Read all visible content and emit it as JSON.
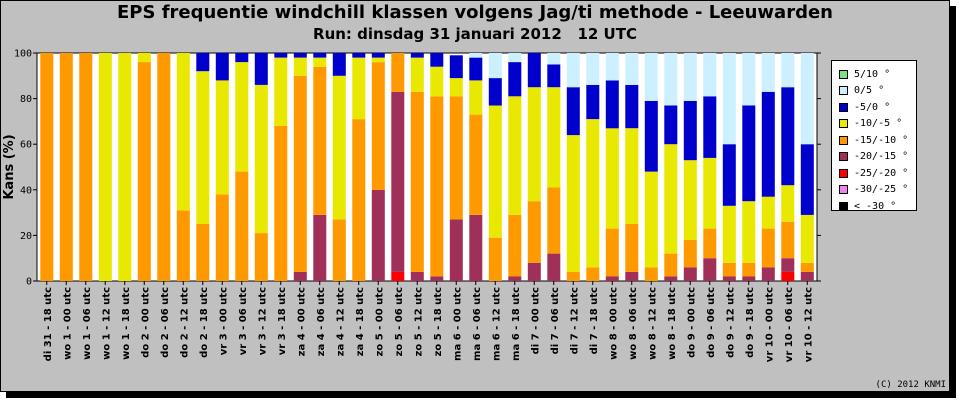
{
  "title": "EPS frequentie windchill klassen volgens Jag/ti methode - Leeuwarden",
  "subtitle": "Run: dinsdag 31 januari 2012   12 UTC",
  "credit": "(C) 2012 KNMI",
  "chart_data": {
    "type": "bar",
    "stacked": true,
    "ylabel": "Kans (%)",
    "ylim": [
      0,
      100
    ],
    "yticks": [
      0,
      20,
      40,
      60,
      80,
      100
    ],
    "grid": false,
    "legend_position": "right",
    "categories": [
      "di 31 - 18 utc",
      "wo 1 - 00 utc",
      "wo 1 - 06 utc",
      "wo 1 - 12 utc",
      "wo 1 - 18 utc",
      "do 2 - 00 utc",
      "do 2 - 06 utc",
      "do 2 - 12 utc",
      "do 2 - 18 utc",
      "vr 3 - 00 utc",
      "vr 3 - 06 utc",
      "vr 3 - 12 utc",
      "vr 3 - 18 utc",
      "za 4 - 00 utc",
      "za 4 - 06 utc",
      "za 4 - 12 utc",
      "za 4 - 18 utc",
      "zo 5 - 00 utc",
      "zo 5 - 06 utc",
      "zo 5 - 12 utc",
      "zo 5 - 18 utc",
      "ma 6 - 00 utc",
      "ma 6 - 06 utc",
      "ma 6 - 12 utc",
      "ma 6 - 18 utc",
      "di 7 - 00 utc",
      "di 7 - 06 utc",
      "di 7 - 12 utc",
      "di 7 - 18 utc",
      "wo 8 - 00 utc",
      "wo 8 - 06 utc",
      "wo 8 - 12 utc",
      "wo 8 - 18 utc",
      "do 9 - 00 utc",
      "do 9 - 06 utc",
      "do 9 - 12 utc",
      "do 9 - 18 utc",
      "vr 10 - 00 utc",
      "vr 10 - 06 utc",
      "vr 10 - 12 utc"
    ],
    "series": [
      {
        "name": "< -30 °",
        "color": "#000000",
        "values": [
          0,
          0,
          0,
          0,
          0,
          0,
          0,
          0,
          0,
          0,
          0,
          0,
          0,
          0,
          0,
          0,
          0,
          0,
          0,
          0,
          0,
          0,
          0,
          0,
          0,
          0,
          0,
          0,
          0,
          0,
          0,
          0,
          0,
          0,
          0,
          0,
          0,
          0,
          0,
          0
        ]
      },
      {
        "name": "-30/-25 °",
        "color": "#ee82ee",
        "values": [
          0,
          0,
          0,
          0,
          0,
          0,
          0,
          0,
          0,
          0,
          0,
          0,
          0,
          0,
          0,
          0,
          0,
          0,
          0,
          0,
          0,
          0,
          0,
          0,
          0,
          0,
          0,
          0,
          0,
          0,
          0,
          0,
          0,
          0,
          0,
          0,
          0,
          0,
          0,
          0
        ]
      },
      {
        "name": "-25/-20 °",
        "color": "#ff0000",
        "values": [
          0,
          0,
          0,
          0,
          0,
          0,
          0,
          0,
          0,
          0,
          0,
          0,
          0,
          0,
          0,
          0,
          0,
          0,
          4,
          0,
          0,
          0,
          0,
          0,
          0,
          0,
          0,
          0,
          0,
          0,
          0,
          0,
          0,
          0,
          0,
          0,
          0,
          0,
          4,
          0
        ]
      },
      {
        "name": "-20/-15 °",
        "color": "#a0305a",
        "values": [
          0,
          0,
          0,
          0,
          0,
          0,
          0,
          0,
          0,
          0,
          0,
          0,
          0,
          4,
          29,
          0,
          0,
          40,
          79,
          4,
          2,
          27,
          29,
          0,
          2,
          8,
          12,
          0,
          0,
          2,
          4,
          0,
          2,
          6,
          10,
          2,
          2,
          6,
          6,
          4
        ]
      },
      {
        "name": "-15/-10 °",
        "color": "#ff9900",
        "values": [
          100,
          100,
          100,
          0,
          0,
          96,
          100,
          31,
          25,
          38,
          48,
          21,
          68,
          86,
          65,
          27,
          71,
          56,
          17,
          79,
          79,
          54,
          44,
          19,
          27,
          27,
          29,
          4,
          6,
          21,
          21,
          6,
          10,
          12,
          13,
          6,
          6,
          17,
          16,
          4
        ]
      },
      {
        "name": "-10/-5 °",
        "color": "#e8e800",
        "values": [
          0,
          0,
          0,
          100,
          100,
          4,
          0,
          69,
          67,
          50,
          48,
          65,
          30,
          8,
          4,
          63,
          27,
          2,
          0,
          15,
          13,
          8,
          15,
          58,
          52,
          50,
          44,
          60,
          65,
          44,
          42,
          42,
          48,
          35,
          31,
          25,
          27,
          14,
          16,
          21
        ]
      },
      {
        "name": "-5/0 °",
        "color": "#0000cc",
        "values": [
          0,
          0,
          0,
          0,
          0,
          0,
          0,
          0,
          8,
          12,
          4,
          14,
          2,
          2,
          2,
          10,
          2,
          2,
          0,
          2,
          6,
          10,
          10,
          12,
          15,
          15,
          10,
          21,
          15,
          21,
          19,
          31,
          17,
          26,
          27,
          27,
          42,
          46,
          43,
          31
        ]
      },
      {
        "name": "0/5 °",
        "color": "#ccf0ff",
        "values": [
          0,
          0,
          0,
          0,
          0,
          0,
          0,
          0,
          0,
          0,
          0,
          0,
          0,
          0,
          0,
          0,
          0,
          0,
          0,
          0,
          0,
          0,
          2,
          11,
          4,
          0,
          5,
          15,
          14,
          12,
          14,
          21,
          23,
          21,
          19,
          40,
          23,
          17,
          15,
          40
        ]
      },
      {
        "name": "5/10 °",
        "color": "#80e080",
        "values": [
          0,
          0,
          0,
          0,
          0,
          0,
          0,
          0,
          0,
          0,
          0,
          0,
          0,
          0,
          0,
          0,
          0,
          0,
          0,
          0,
          0,
          0,
          0,
          0,
          0,
          0,
          0,
          0,
          0,
          0,
          0,
          0,
          0,
          0,
          0,
          0,
          0,
          0,
          0,
          0
        ]
      }
    ]
  }
}
